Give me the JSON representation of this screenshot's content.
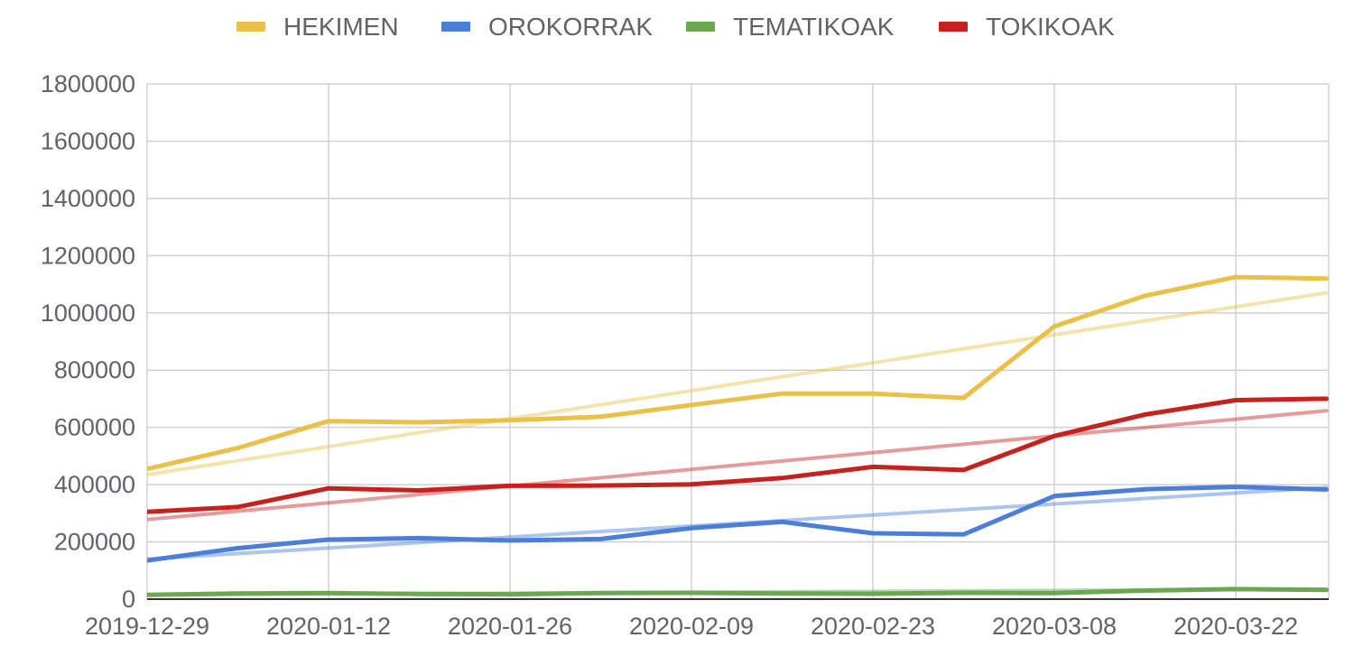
{
  "chart_data": {
    "type": "line",
    "legend_position": "top",
    "grid": true,
    "trendlines": true,
    "x_tick_labels": [
      "2019-12-29",
      "2020-01-12",
      "2020-01-26",
      "2020-02-09",
      "2020-02-23",
      "2020-03-08",
      "2020-03-22"
    ],
    "y_tick_labels": [
      "0",
      "200000",
      "400000",
      "600000",
      "800000",
      "1000000",
      "1200000",
      "1400000",
      "1600000",
      "1800000"
    ],
    "ylim": [
      0,
      1800000
    ],
    "x": [
      "2019-12-29",
      "2020-01-05",
      "2020-01-12",
      "2020-01-19",
      "2020-01-26",
      "2020-02-02",
      "2020-02-09",
      "2020-02-16",
      "2020-02-23",
      "2020-03-01",
      "2020-03-08",
      "2020-03-15",
      "2020-03-22",
      "2020-03-29"
    ],
    "series": [
      {
        "name": "HEKIMEN",
        "color": "#e8c04a",
        "values": [
          455000,
          528000,
          622000,
          618000,
          625000,
          637000,
          678000,
          718000,
          718000,
          703000,
          953000,
          1060000,
          1125000,
          1120000
        ],
        "trend": [
          435000,
          1070000
        ]
      },
      {
        "name": "OROKORRAK",
        "color": "#4a7ed9",
        "values": [
          135000,
          178000,
          208000,
          213000,
          205000,
          210000,
          248000,
          270000,
          230000,
          226000,
          360000,
          384000,
          392000,
          383000
        ],
        "trend": [
          140000,
          390000
        ]
      },
      {
        "name": "TEMATIKOAK",
        "color": "#6aa84f",
        "values": [
          15000,
          20000,
          21000,
          18000,
          17000,
          21000,
          22000,
          20000,
          19000,
          22000,
          21000,
          30000,
          35000,
          32000
        ],
        "trend": [
          15000,
          35000
        ]
      },
      {
        "name": "TOKIKOAK",
        "color": "#c5221f",
        "values": [
          305000,
          322000,
          387000,
          380000,
          396000,
          397000,
          401000,
          423000,
          462000,
          451000,
          570000,
          645000,
          695000,
          700000
        ],
        "trend": [
          278000,
          658000
        ]
      }
    ]
  }
}
